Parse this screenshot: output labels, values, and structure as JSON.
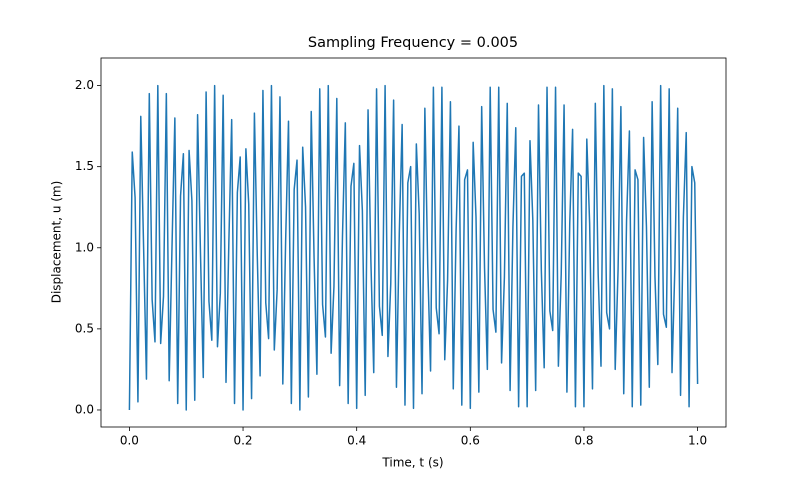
{
  "chart_data": {
    "type": "line",
    "title": "Sampling Frequency = 0.005",
    "x_label": "Time, t (s)",
    "y_label": "Displacement, u (m)",
    "xlim": [
      -0.05,
      1.05
    ],
    "ylim": [
      -0.105,
      2.17
    ],
    "xticks": [
      {
        "value": 0,
        "label": "0.0"
      },
      {
        "value": 0.2,
        "label": "0.2"
      },
      {
        "value": 0.4,
        "label": "0.4"
      },
      {
        "value": 0.6,
        "label": "0.6"
      },
      {
        "value": 0.8,
        "label": "0.8"
      },
      {
        "value": 1,
        "label": "1.0"
      }
    ],
    "yticks": [
      {
        "value": 0,
        "label": "0.0"
      },
      {
        "value": 0.5,
        "label": "0.5"
      },
      {
        "value": 1,
        "label": "1.0"
      },
      {
        "value": 1.5,
        "label": "1.5"
      },
      {
        "value": 2,
        "label": "2.0"
      }
    ],
    "x": [
      0,
      0.005,
      0.01,
      0.015,
      0.02,
      0.025,
      0.03,
      0.035,
      0.04,
      0.045,
      0.05,
      0.055,
      0.06,
      0.065,
      0.07,
      0.075,
      0.08,
      0.085,
      0.09,
      0.095,
      0.1,
      0.105,
      0.11,
      0.115,
      0.12,
      0.125,
      0.13,
      0.135,
      0.14,
      0.145,
      0.15,
      0.155,
      0.16,
      0.165,
      0.17,
      0.175,
      0.18,
      0.185,
      0.19,
      0.195,
      0.2,
      0.205,
      0.21,
      0.215,
      0.22,
      0.225,
      0.23,
      0.235,
      0.24,
      0.245,
      0.25,
      0.255,
      0.26,
      0.265,
      0.27,
      0.275,
      0.28,
      0.285,
      0.29,
      0.295,
      0.3,
      0.305,
      0.31,
      0.315,
      0.32,
      0.325,
      0.33,
      0.335,
      0.34,
      0.345,
      0.35,
      0.355,
      0.36,
      0.365,
      0.37,
      0.375,
      0.38,
      0.385,
      0.39,
      0.395,
      0.4,
      0.405,
      0.41,
      0.415,
      0.42,
      0.425,
      0.43,
      0.435,
      0.44,
      0.445,
      0.45,
      0.455,
      0.46,
      0.465,
      0.47,
      0.475,
      0.48,
      0.485,
      0.49,
      0.495,
      0.5,
      0.505,
      0.51,
      0.515,
      0.52,
      0.525,
      0.53,
      0.535,
      0.54,
      0.545,
      0.55,
      0.555,
      0.56,
      0.565,
      0.57,
      0.575,
      0.58,
      0.585,
      0.59,
      0.595,
      0.6,
      0.605,
      0.61,
      0.615,
      0.62,
      0.625,
      0.63,
      0.635,
      0.64,
      0.645,
      0.65,
      0.655,
      0.66,
      0.665,
      0.67,
      0.675,
      0.68,
      0.685,
      0.69,
      0.695,
      0.7,
      0.705,
      0.71,
      0.715,
      0.72,
      0.725,
      0.73,
      0.735,
      0.74,
      0.745,
      0.75,
      0.755,
      0.76,
      0.765,
      0.77,
      0.775,
      0.78,
      0.785,
      0.79,
      0.795,
      0.8,
      0.805,
      0.81,
      0.815,
      0.82,
      0.825,
      0.83,
      0.835,
      0.84,
      0.845,
      0.85,
      0.855,
      0.86,
      0.865,
      0.87,
      0.875,
      0.88,
      0.885,
      0.89,
      0.895,
      0.9,
      0.905,
      0.91,
      0.915,
      0.92,
      0.925,
      0.93,
      0.935,
      0.94,
      0.945,
      0.95,
      0.955,
      0.96,
      0.965,
      0.97,
      0.975,
      0.98,
      0.985,
      0.99,
      0.995,
      1
    ],
    "series": [
      {
        "color": "#1f77b4",
        "values": [
          0,
          1.59,
          1.31,
          0.05,
          1.81,
          1.0,
          0.19,
          1.95,
          0.68,
          0.42,
          2.0,
          0.41,
          0.7,
          1.95,
          0.18,
          1.01,
          1.8,
          0.04,
          1.32,
          1.58,
          0,
          1.6,
          1.29,
          0.06,
          1.82,
          0.98,
          0.2,
          1.96,
          0.67,
          0.43,
          2.0,
          0.39,
          0.72,
          1.94,
          0.17,
          1.03,
          1.79,
          0.04,
          1.34,
          1.56,
          0,
          1.61,
          1.27,
          0.07,
          1.83,
          0.96,
          0.21,
          1.97,
          0.66,
          0.44,
          2.0,
          0.37,
          0.74,
          1.93,
          0.16,
          1.05,
          1.78,
          0.04,
          1.36,
          1.54,
          0,
          1.62,
          1.25,
          0.08,
          1.84,
          0.94,
          0.22,
          1.98,
          0.65,
          0.45,
          2.0,
          0.35,
          0.76,
          1.92,
          0.15,
          1.07,
          1.77,
          0.04,
          1.38,
          1.52,
          0.01,
          1.63,
          1.23,
          0.09,
          1.85,
          0.92,
          0.23,
          1.98,
          0.64,
          0.46,
          2.0,
          0.33,
          0.78,
          1.91,
          0.14,
          1.09,
          1.76,
          0.03,
          1.4,
          1.5,
          0.01,
          1.64,
          1.21,
          0.1,
          1.86,
          0.9,
          0.24,
          1.99,
          0.63,
          0.47,
          1.99,
          0.31,
          0.8,
          1.9,
          0.13,
          1.11,
          1.75,
          0.03,
          1.42,
          1.48,
          0.01,
          1.65,
          1.19,
          0.11,
          1.87,
          0.88,
          0.25,
          1.99,
          0.62,
          0.48,
          1.99,
          0.29,
          0.82,
          1.89,
          0.12,
          1.13,
          1.74,
          0.02,
          1.44,
          1.46,
          0.02,
          1.66,
          1.17,
          0.12,
          1.88,
          0.86,
          0.26,
          1.99,
          0.61,
          0.49,
          1.99,
          0.27,
          0.84,
          1.88,
          0.11,
          1.15,
          1.73,
          0.02,
          1.46,
          1.44,
          0.02,
          1.67,
          1.15,
          0.13,
          1.89,
          0.84,
          0.27,
          2.0,
          0.6,
          0.5,
          1.98,
          0.25,
          0.86,
          1.87,
          0.1,
          1.17,
          1.72,
          0.02,
          1.48,
          1.42,
          0.03,
          1.68,
          1.13,
          0.14,
          1.9,
          0.82,
          0.28,
          2.0,
          0.59,
          0.51,
          1.98,
          0.23,
          0.88,
          1.86,
          0.09,
          1.19,
          1.71,
          0.02,
          1.5,
          1.4,
          0.16
        ]
      }
    ]
  }
}
